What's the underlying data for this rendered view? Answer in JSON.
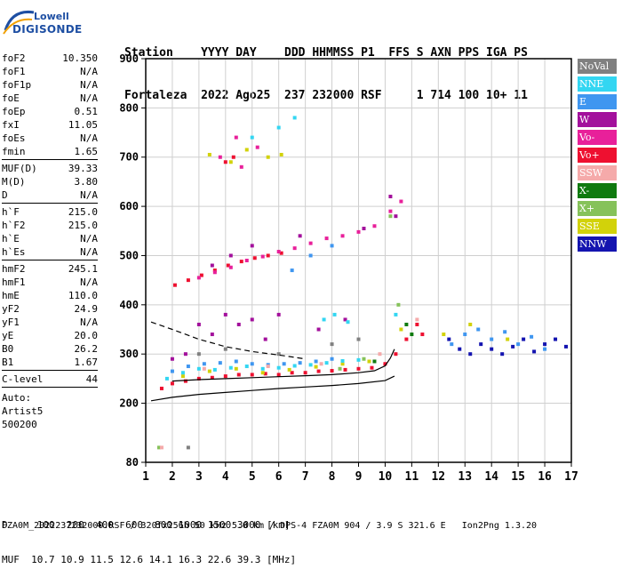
{
  "logo": {
    "line1": "Lowell",
    "line2": "DIGISONDE"
  },
  "header": {
    "labels": "Station    YYYY DAY    DDD HHMMSS P1  FFS S AXN PPS IGA PS",
    "values": "Fortaleza  2022 Ago25  237 232000 RSF     1 714 100 10+ 11"
  },
  "params": {
    "group1": [
      {
        "k": "foF2",
        "v": "10.350"
      },
      {
        "k": "foF1",
        "v": "N/A"
      },
      {
        "k": "foF1p",
        "v": "N/A"
      },
      {
        "k": "foE",
        "v": "N/A"
      },
      {
        "k": "foEp",
        "v": "0.51"
      },
      {
        "k": "fxI",
        "v": "11.05"
      },
      {
        "k": "foEs",
        "v": "N/A"
      },
      {
        "k": "fmin",
        "v": "1.65"
      }
    ],
    "group2": [
      {
        "k": "MUF(D)",
        "v": "39.33"
      },
      {
        "k": "M(D)",
        "v": "3.80"
      },
      {
        "k": "D",
        "v": "N/A"
      }
    ],
    "group3": [
      {
        "k": "h`F",
        "v": "215.0"
      },
      {
        "k": "h`F2",
        "v": "215.0"
      },
      {
        "k": "h`E",
        "v": "N/A"
      },
      {
        "k": "h`Es",
        "v": "N/A"
      }
    ],
    "group4": [
      {
        "k": "hmF2",
        "v": "245.1"
      },
      {
        "k": "hmF1",
        "v": "N/A"
      },
      {
        "k": "hmE",
        "v": "110.0"
      },
      {
        "k": "yF2",
        "v": "24.9"
      },
      {
        "k": "yF1",
        "v": "N/A"
      },
      {
        "k": "yE",
        "v": "20.0"
      },
      {
        "k": "B0",
        "v": "26.2"
      },
      {
        "k": "B1",
        "v": "1.67"
      }
    ],
    "group5": [
      {
        "k": "C-level",
        "v": "44"
      }
    ],
    "auto": [
      "Auto:",
      "Artist5",
      "500200"
    ]
  },
  "legend": [
    {
      "label": "NoVal",
      "color": "#808080"
    },
    {
      "label": "NNE",
      "color": "#33d6f2"
    },
    {
      "label": "E",
      "color": "#3f96f0"
    },
    {
      "label": "W",
      "color": "#a3109c"
    },
    {
      "label": "Vo-",
      "color": "#e8209a"
    },
    {
      "label": "Vo+",
      "color": "#ee1030"
    },
    {
      "label": "SSW",
      "color": "#f5aaaa"
    },
    {
      "label": "X-",
      "color": "#0f7a0f"
    },
    {
      "label": "X+",
      "color": "#86c25a"
    },
    {
      "label": "SSE",
      "color": "#d2d20a"
    },
    {
      "label": "NNW",
      "color": "#1414b0"
    }
  ],
  "bottom": {
    "d_row": "D     100  200  400  600  800 1000 1500 3000 [km]",
    "muf_row": "MUF  10.7 10.9 11.5 12.6 14.1 16.3 22.6 39.3 [MHz]",
    "footer": "FZA0M_2022237232000.RSF / 320fx256h 50 kHz 5.0 km / DPS-4 FZA0M 904 / 3.9 S 321.6 E   Ion2Png 1.3.20"
  },
  "chart_data": {
    "type": "scatter",
    "xlim": [
      1,
      17
    ],
    "ylim": [
      80,
      900
    ],
    "x_ticks": [
      1,
      2,
      3,
      4,
      5,
      6,
      7,
      8,
      9,
      10,
      11,
      12,
      13,
      14,
      15,
      16,
      17
    ],
    "y_ticks": [
      80,
      200,
      300,
      400,
      500,
      600,
      700,
      800,
      900
    ],
    "grid": true,
    "legend_position": "right",
    "series": [
      {
        "name": "Vo+",
        "color": "#ee1030",
        "points": [
          [
            1.6,
            230
          ],
          [
            2.0,
            240
          ],
          [
            2.5,
            245
          ],
          [
            3.0,
            250
          ],
          [
            3.5,
            252
          ],
          [
            4.0,
            255
          ],
          [
            4.5,
            258
          ],
          [
            5.0,
            258
          ],
          [
            5.5,
            260
          ],
          [
            6.0,
            258
          ],
          [
            6.5,
            262
          ],
          [
            7.0,
            262
          ],
          [
            7.5,
            265
          ],
          [
            8.0,
            266
          ],
          [
            8.5,
            268
          ],
          [
            9.0,
            270
          ],
          [
            9.5,
            272
          ],
          [
            10.0,
            280
          ],
          [
            10.4,
            300
          ],
          [
            10.8,
            330
          ],
          [
            11.2,
            360
          ],
          [
            11.4,
            340
          ],
          [
            2.1,
            440
          ],
          [
            2.6,
            450
          ],
          [
            3.1,
            460
          ],
          [
            3.6,
            470
          ],
          [
            4.1,
            480
          ],
          [
            4.6,
            488
          ],
          [
            5.1,
            495
          ],
          [
            5.6,
            500
          ],
          [
            6.1,
            505
          ],
          [
            4.0,
            690
          ],
          [
            4.3,
            700
          ]
        ]
      },
      {
        "name": "E",
        "color": "#3f96f0",
        "points": [
          [
            2.0,
            265
          ],
          [
            2.6,
            275
          ],
          [
            3.2,
            280
          ],
          [
            3.8,
            282
          ],
          [
            4.4,
            285
          ],
          [
            5.0,
            280
          ],
          [
            5.6,
            278
          ],
          [
            6.2,
            280
          ],
          [
            6.8,
            282
          ],
          [
            7.4,
            285
          ],
          [
            8.0,
            290
          ],
          [
            12.5,
            320
          ],
          [
            13.0,
            340
          ],
          [
            13.5,
            350
          ],
          [
            14.0,
            330
          ],
          [
            14.5,
            345
          ],
          [
            15.0,
            320
          ],
          [
            15.5,
            335
          ],
          [
            16.0,
            310
          ],
          [
            6.5,
            470
          ],
          [
            7.2,
            500
          ],
          [
            8.0,
            520
          ]
        ]
      },
      {
        "name": "NNW",
        "color": "#1414b0",
        "points": [
          [
            12.4,
            330
          ],
          [
            12.8,
            310
          ],
          [
            13.2,
            300
          ],
          [
            13.6,
            320
          ],
          [
            14.0,
            310
          ],
          [
            14.4,
            300
          ],
          [
            14.8,
            315
          ],
          [
            15.2,
            330
          ],
          [
            15.6,
            305
          ],
          [
            16.0,
            320
          ],
          [
            16.4,
            330
          ],
          [
            16.8,
            315
          ]
        ]
      },
      {
        "name": "W",
        "color": "#a3109c",
        "points": [
          [
            2.0,
            290
          ],
          [
            2.5,
            300
          ],
          [
            3.0,
            360
          ],
          [
            3.5,
            340
          ],
          [
            4.0,
            380
          ],
          [
            4.5,
            360
          ],
          [
            5.0,
            370
          ],
          [
            5.5,
            330
          ],
          [
            6.0,
            380
          ],
          [
            7.5,
            350
          ],
          [
            8.5,
            370
          ],
          [
            3.5,
            480
          ],
          [
            4.2,
            500
          ],
          [
            5.0,
            520
          ],
          [
            6.8,
            540
          ],
          [
            9.2,
            555
          ],
          [
            10.2,
            620
          ],
          [
            10.4,
            580
          ]
        ]
      },
      {
        "name": "Vo-",
        "color": "#e8209a",
        "points": [
          [
            3.0,
            455
          ],
          [
            3.6,
            466
          ],
          [
            4.2,
            476
          ],
          [
            4.8,
            490
          ],
          [
            5.4,
            498
          ],
          [
            6.0,
            508
          ],
          [
            6.6,
            515
          ],
          [
            7.2,
            525
          ],
          [
            7.8,
            535
          ],
          [
            8.4,
            540
          ],
          [
            9.0,
            548
          ],
          [
            9.6,
            560
          ],
          [
            10.2,
            590
          ],
          [
            10.6,
            610
          ],
          [
            3.8,
            700
          ],
          [
            4.6,
            680
          ],
          [
            5.2,
            720
          ],
          [
            4.4,
            740
          ]
        ]
      },
      {
        "name": "SSE",
        "color": "#d2d20a",
        "points": [
          [
            2.4,
            255
          ],
          [
            3.4,
            265
          ],
          [
            4.4,
            270
          ],
          [
            5.4,
            262
          ],
          [
            6.4,
            268
          ],
          [
            7.4,
            274
          ],
          [
            8.4,
            280
          ],
          [
            9.4,
            285
          ],
          [
            10.6,
            350
          ],
          [
            3.4,
            705
          ],
          [
            4.2,
            690
          ],
          [
            4.8,
            715
          ],
          [
            5.6,
            700
          ],
          [
            6.1,
            705
          ],
          [
            12.2,
            340
          ],
          [
            13.2,
            360
          ],
          [
            14.6,
            330
          ]
        ]
      },
      {
        "name": "NNE",
        "color": "#33d6f2",
        "points": [
          [
            1.8,
            250
          ],
          [
            2.4,
            262
          ],
          [
            3.0,
            270
          ],
          [
            3.6,
            268
          ],
          [
            4.2,
            272
          ],
          [
            4.8,
            275
          ],
          [
            5.4,
            270
          ],
          [
            6.0,
            272
          ],
          [
            6.6,
            276
          ],
          [
            7.2,
            278
          ],
          [
            7.8,
            282
          ],
          [
            8.4,
            286
          ],
          [
            9.0,
            288
          ],
          [
            7.7,
            370
          ],
          [
            8.1,
            380
          ],
          [
            8.6,
            365
          ],
          [
            10.4,
            380
          ],
          [
            6.0,
            760
          ],
          [
            6.6,
            780
          ],
          [
            5.0,
            740
          ]
        ]
      },
      {
        "name": "X+",
        "color": "#86c25a",
        "points": [
          [
            8.3,
            270
          ],
          [
            9.2,
            290
          ],
          [
            10.5,
            400
          ],
          [
            1.5,
            110
          ],
          [
            10.2,
            580
          ]
        ]
      },
      {
        "name": "X-",
        "color": "#0f7a0f",
        "points": [
          [
            9.6,
            285
          ],
          [
            10.8,
            360
          ],
          [
            11.0,
            340
          ]
        ]
      },
      {
        "name": "SSW",
        "color": "#f5aaaa",
        "points": [
          [
            3.2,
            270
          ],
          [
            5.6,
            275
          ],
          [
            7.6,
            280
          ],
          [
            9.8,
            300
          ],
          [
            11.2,
            370
          ],
          [
            1.6,
            110
          ]
        ]
      },
      {
        "name": "NoVal",
        "color": "#808080",
        "points": [
          [
            3.0,
            300
          ],
          [
            4.0,
            310
          ],
          [
            6.0,
            300
          ],
          [
            8.0,
            320
          ],
          [
            9.0,
            330
          ],
          [
            2.6,
            110
          ]
        ]
      }
    ],
    "lines": [
      {
        "style": "solid",
        "points": [
          [
            1.2,
            205
          ],
          [
            2.0,
            212
          ],
          [
            3.0,
            218
          ],
          [
            4.0,
            222
          ],
          [
            5.0,
            226
          ],
          [
            6.0,
            230
          ],
          [
            7.0,
            233
          ],
          [
            8.0,
            236
          ],
          [
            9.0,
            240
          ],
          [
            10.0,
            246
          ],
          [
            10.35,
            255
          ]
        ]
      },
      {
        "style": "solid",
        "points": [
          [
            2.0,
            245
          ],
          [
            3.0,
            248
          ],
          [
            4.0,
            250
          ],
          [
            5.0,
            252
          ],
          [
            6.0,
            254
          ],
          [
            7.0,
            256
          ],
          [
            8.0,
            258
          ],
          [
            9.0,
            262
          ],
          [
            9.6,
            266
          ],
          [
            10.0,
            276
          ],
          [
            10.2,
            292
          ],
          [
            10.35,
            310
          ]
        ]
      },
      {
        "style": "dashed",
        "points": [
          [
            1.2,
            365
          ],
          [
            2.0,
            350
          ],
          [
            3.0,
            330
          ],
          [
            4.0,
            315
          ],
          [
            5.0,
            305
          ],
          [
            6.0,
            298
          ],
          [
            7.0,
            290
          ]
        ]
      }
    ]
  }
}
